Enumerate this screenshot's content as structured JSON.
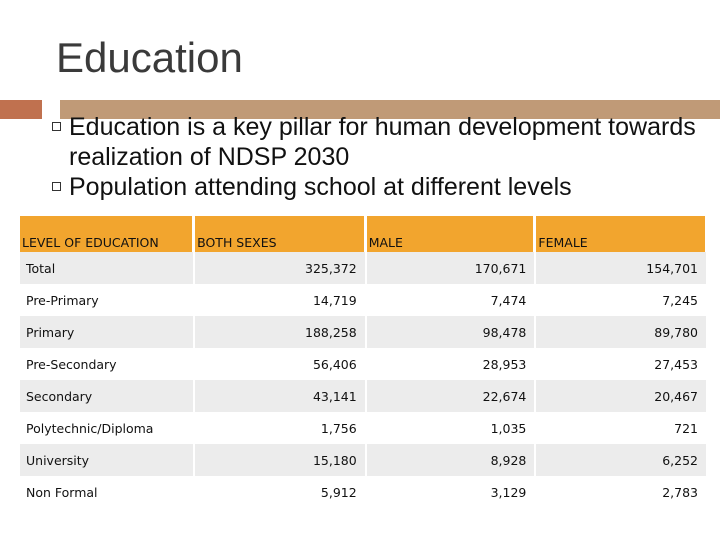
{
  "title": "Education",
  "bullets": [
    "Education is a key pillar for human development towards realization of NDSP 2030",
    "Population attending school at different levels"
  ],
  "table": {
    "headers": [
      "LEVEL OF EDUCATION",
      "BOTH SEXES",
      "MALE",
      "FEMALE"
    ],
    "rows": [
      {
        "level": "Total",
        "both": "325,372",
        "male": "170,671",
        "female": "154,701"
      },
      {
        "level": "Pre-Primary",
        "both": "14,719",
        "male": "7,474",
        "female": "7,245"
      },
      {
        "level": "Primary",
        "both": "188,258",
        "male": "98,478",
        "female": "89,780"
      },
      {
        "level": "Pre-Secondary",
        "both": "56,406",
        "male": "28,953",
        "female": "27,453"
      },
      {
        "level": "Secondary",
        "both": "43,141",
        "male": "22,674",
        "female": "20,467"
      },
      {
        "level": "Polytechnic/Diploma",
        "both": "1,756",
        "male": "1,035",
        "female": "721"
      },
      {
        "level": "University",
        "both": "15,180",
        "male": "8,928",
        "female": "6,252"
      },
      {
        "level": "Non Formal",
        "both": "5,912",
        "male": "3,129",
        "female": "2,783"
      }
    ]
  },
  "colors": {
    "header_bg": "#f2a52e",
    "accent_left": "#c0714f",
    "accent_right": "#c09a77",
    "row_alt": "#ececec"
  },
  "icons": {
    "bullet": "square-bullet-icon"
  }
}
